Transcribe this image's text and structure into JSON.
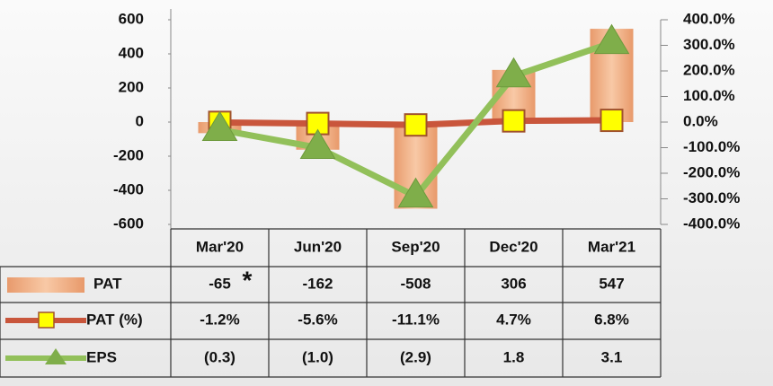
{
  "chart_data": {
    "type": "bar",
    "categories": [
      "Mar'20",
      "Jun'20",
      "Sep'20",
      "Dec'20",
      "Mar'21"
    ],
    "series": [
      {
        "name": "PAT",
        "type": "bar",
        "color": "#f4b183",
        "values": [
          -65,
          -162,
          -508,
          306,
          547
        ]
      },
      {
        "name": "PAT (%)",
        "type": "line",
        "axis": "y2",
        "color": "#c9563c",
        "marker_color": "#ffff00",
        "values": [
          -0.012,
          -0.056,
          -0.111,
          0.047,
          0.068
        ],
        "value_labels": [
          "-1.2%",
          "-5.6%",
          "-11.1%",
          "4.7%",
          "6.8%"
        ]
      },
      {
        "name": "EPS",
        "type": "line",
        "axis": "y2",
        "color": "#92c05a",
        "marker_color": "#7fae4a",
        "values": [
          -0.3,
          -1.0,
          -2.9,
          1.8,
          3.1
        ],
        "value_labels": [
          "(0.3)",
          "(1.0)",
          "(2.9)",
          "1.8",
          "3.1"
        ]
      }
    ],
    "annotation": "*",
    "ylim": [
      -600,
      600
    ],
    "yticks": [
      -600,
      -400,
      -200,
      0,
      200,
      400,
      600
    ],
    "y2lim": [
      -4,
      4
    ],
    "y2ticks": [
      {
        "value": -4,
        "label": "-400.0%"
      },
      {
        "value": -3,
        "label": "-300.0%"
      },
      {
        "value": -2,
        "label": "-200.0%"
      },
      {
        "value": -1,
        "label": "-100.0%"
      },
      {
        "value": 0,
        "label": "0.0%"
      },
      {
        "value": 1,
        "label": "100.0%"
      },
      {
        "value": 2,
        "label": "200.0%"
      },
      {
        "value": 3,
        "label": "300.0%"
      },
      {
        "value": 4,
        "label": "400.0%"
      }
    ],
    "grid": false
  }
}
